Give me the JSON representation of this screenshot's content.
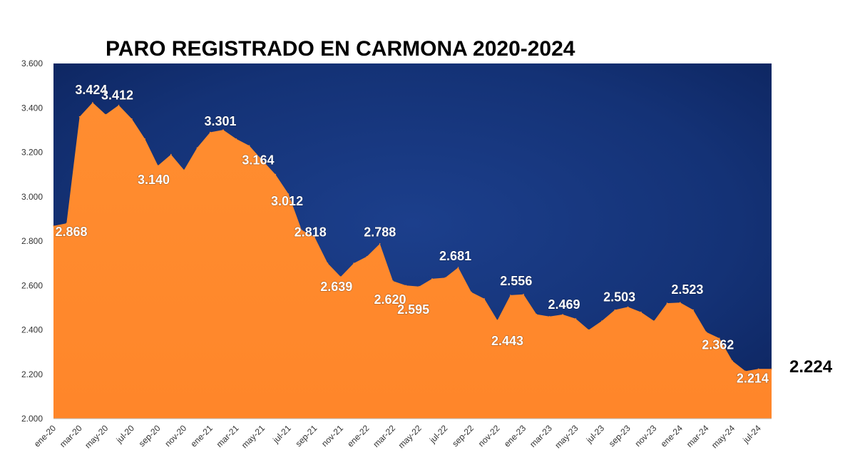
{
  "chart_data": {
    "type": "area",
    "title": "PARO REGISTRADO EN CARMONA 2020-2024",
    "xlabel": "",
    "ylabel": "",
    "ylim": [
      2000,
      3600
    ],
    "yticks": [
      2000,
      2200,
      2400,
      2600,
      2800,
      3000,
      3200,
      3400,
      3600
    ],
    "ytick_labels": [
      "2.000",
      "2.200",
      "2.400",
      "2.600",
      "2.800",
      "3.000",
      "3.200",
      "3.400",
      "3.600"
    ],
    "colors": {
      "area": "#ff8a2a",
      "background": "#0f2a66",
      "text": "#ffffff"
    },
    "x": [
      "ene-20",
      "feb-20",
      "mar-20",
      "abr-20",
      "may-20",
      "jun-20",
      "jul-20",
      "ago-20",
      "sep-20",
      "oct-20",
      "nov-20",
      "dic-20",
      "ene-21",
      "feb-21",
      "mar-21",
      "abr-21",
      "may-21",
      "jun-21",
      "jul-21",
      "ago-21",
      "sep-21",
      "oct-21",
      "nov-21",
      "dic-21",
      "ene-22",
      "feb-22",
      "mar-22",
      "abr-22",
      "may-22",
      "jun-22",
      "jul-22",
      "ago-22",
      "sep-22",
      "oct-22",
      "nov-22",
      "dic-22",
      "ene-23",
      "feb-23",
      "mar-23",
      "abr-23",
      "may-23",
      "jun-23",
      "jul-23",
      "ago-23",
      "sep-23",
      "oct-23",
      "nov-23",
      "dic-23",
      "ene-24",
      "feb-24",
      "mar-24",
      "abr-24",
      "may-24",
      "jun-24",
      "jul-24",
      "ago-24"
    ],
    "x_tick_labels": [
      "ene-20",
      "mar-20",
      "may-20",
      "jul-20",
      "sep-20",
      "nov-20",
      "ene-21",
      "mar-21",
      "may-21",
      "jul-21",
      "sep-21",
      "nov-21",
      "ene-22",
      "mar-22",
      "may-22",
      "jul-22",
      "sep-22",
      "nov-22",
      "ene-23",
      "mar-23",
      "may-23",
      "jul-23",
      "sep-23",
      "nov-23",
      "ene-24",
      "mar-24",
      "may-24",
      "jul-24"
    ],
    "series": [
      {
        "name": "Paro registrado",
        "values": [
          2868,
          2880,
          3360,
          3424,
          3370,
          3412,
          3350,
          3260,
          3140,
          3190,
          3120,
          3220,
          3290,
          3301,
          3260,
          3230,
          3164,
          3100,
          3012,
          2850,
          2818,
          2700,
          2639,
          2700,
          2730,
          2788,
          2620,
          2600,
          2595,
          2630,
          2635,
          2681,
          2570,
          2540,
          2443,
          2556,
          2560,
          2470,
          2460,
          2469,
          2450,
          2400,
          2440,
          2490,
          2503,
          2480,
          2440,
          2520,
          2523,
          2490,
          2390,
          2362,
          2260,
          2214,
          2224,
          2224
        ]
      }
    ],
    "data_labels": [
      {
        "index": 0,
        "text": "2.868"
      },
      {
        "index": 3,
        "text": "3.424"
      },
      {
        "index": 5,
        "text": "3.412"
      },
      {
        "index": 8,
        "text": "3.140"
      },
      {
        "index": 13,
        "text": "3.301"
      },
      {
        "index": 16,
        "text": "3.164"
      },
      {
        "index": 18,
        "text": "3.012"
      },
      {
        "index": 20,
        "text": "2.818"
      },
      {
        "index": 22,
        "text": "2.639"
      },
      {
        "index": 25,
        "text": "2.788"
      },
      {
        "index": 26,
        "text": "2.620"
      },
      {
        "index": 28,
        "text": "2.595"
      },
      {
        "index": 31,
        "text": "2.681"
      },
      {
        "index": 34,
        "text": "2.443"
      },
      {
        "index": 35,
        "text": "2.556"
      },
      {
        "index": 39,
        "text": "2.469"
      },
      {
        "index": 44,
        "text": "2.503"
      },
      {
        "index": 48,
        "text": "2.523"
      },
      {
        "index": 51,
        "text": "2.362"
      },
      {
        "index": 53,
        "text": "2.214"
      }
    ],
    "last_value_label": "2.224"
  }
}
